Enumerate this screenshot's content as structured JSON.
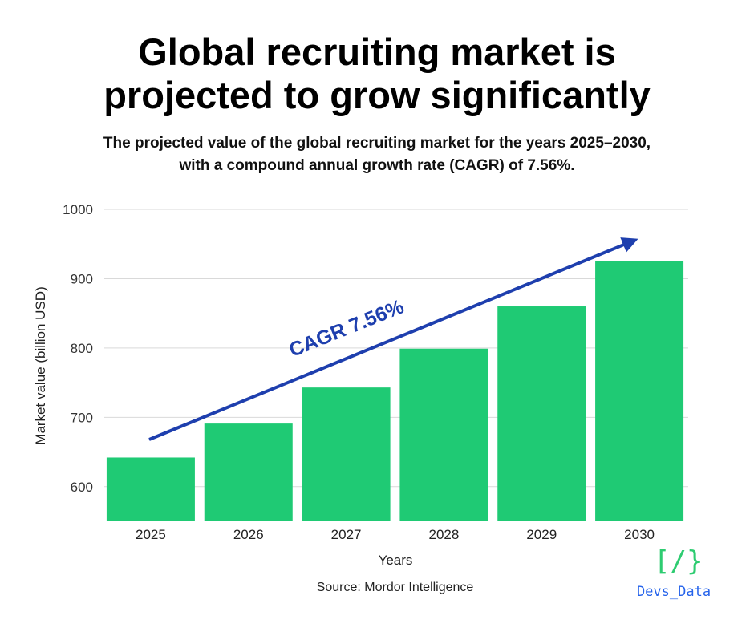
{
  "header": {
    "title_line1": "Global recruiting market is",
    "title_line2": "projected to grow significantly",
    "subtitle_line1": "The projected value of the global recruiting market for the years 2025–2030,",
    "subtitle_line2": "with a compound annual growth rate (CAGR) of 7.56%."
  },
  "chart_data": {
    "type": "bar",
    "categories": [
      "2025",
      "2026",
      "2027",
      "2028",
      "2029",
      "2030"
    ],
    "values": [
      642,
      691,
      743,
      799,
      860,
      925
    ],
    "xlabel": "Years",
    "ylabel": "Market value (billion USD)",
    "ylim": [
      550,
      1000
    ],
    "yticks": [
      600,
      700,
      800,
      900,
      1000
    ],
    "grid": true,
    "annotation": "CAGR 7.56%",
    "bar_color": "#1fca74",
    "arrow_color": "#1e3fae"
  },
  "footer": {
    "source": "Source: Mordor Intelligence",
    "logo_glyph": "[/}",
    "logo_text": "Devs_Data"
  },
  "colors": {
    "grid": "#d9d9d9",
    "logo_green": "#2ecc71",
    "logo_blue": "#2563eb"
  }
}
